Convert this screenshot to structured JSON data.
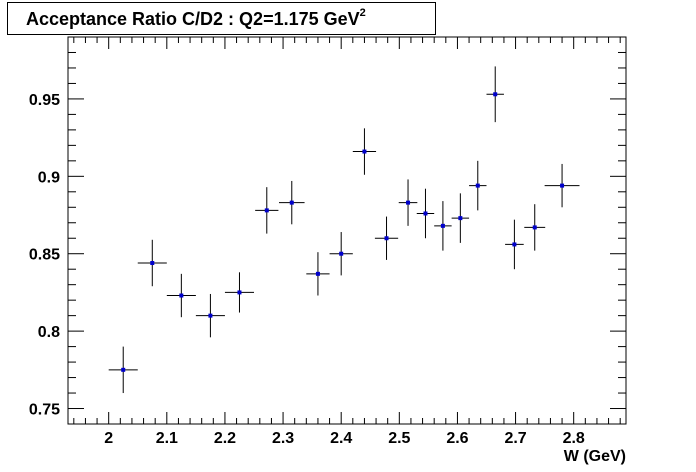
{
  "chart_data": {
    "type": "scatter",
    "title": "Acceptance Ratio C/D2 : Q2=1.175 GeV",
    "title_superscript": "2",
    "xlabel": "W (GeV)",
    "ylabel": "",
    "xlim": [
      1.93,
      2.89
    ],
    "ylim": [
      0.74,
      0.99
    ],
    "x_ticks": [
      2,
      2.1,
      2.2,
      2.3,
      2.4,
      2.5,
      2.6,
      2.7,
      2.8
    ],
    "x_tick_labels": [
      "2",
      "2.1",
      "2.2",
      "2.3",
      "2.4",
      "2.5",
      "2.6",
      "2.7",
      "2.8"
    ],
    "y_ticks": [
      0.75,
      0.8,
      0.85,
      0.9,
      0.95
    ],
    "y_tick_labels": [
      "0.75",
      "0.8",
      "0.85",
      "0.9",
      "0.95"
    ],
    "grid": false,
    "marker_color": "#0000cc",
    "error_bar_color": "#000000",
    "points": [
      {
        "x": 2.025,
        "y": 0.775,
        "xerr": 0.025,
        "yerr": 0.015
      },
      {
        "x": 2.075,
        "y": 0.844,
        "xerr": 0.025,
        "yerr": 0.015
      },
      {
        "x": 2.125,
        "y": 0.823,
        "xerr": 0.025,
        "yerr": 0.014
      },
      {
        "x": 2.175,
        "y": 0.81,
        "xerr": 0.025,
        "yerr": 0.014
      },
      {
        "x": 2.225,
        "y": 0.825,
        "xerr": 0.025,
        "yerr": 0.013
      },
      {
        "x": 2.272,
        "y": 0.878,
        "xerr": 0.02,
        "yerr": 0.015
      },
      {
        "x": 2.315,
        "y": 0.883,
        "xerr": 0.022,
        "yerr": 0.014
      },
      {
        "x": 2.36,
        "y": 0.837,
        "xerr": 0.02,
        "yerr": 0.014
      },
      {
        "x": 2.4,
        "y": 0.85,
        "xerr": 0.02,
        "yerr": 0.014
      },
      {
        "x": 2.44,
        "y": 0.916,
        "xerr": 0.02,
        "yerr": 0.015
      },
      {
        "x": 2.478,
        "y": 0.86,
        "xerr": 0.02,
        "yerr": 0.014
      },
      {
        "x": 2.515,
        "y": 0.883,
        "xerr": 0.016,
        "yerr": 0.015
      },
      {
        "x": 2.545,
        "y": 0.876,
        "xerr": 0.015,
        "yerr": 0.016
      },
      {
        "x": 2.575,
        "y": 0.868,
        "xerr": 0.015,
        "yerr": 0.016
      },
      {
        "x": 2.605,
        "y": 0.873,
        "xerr": 0.015,
        "yerr": 0.016
      },
      {
        "x": 2.635,
        "y": 0.894,
        "xerr": 0.015,
        "yerr": 0.016
      },
      {
        "x": 2.665,
        "y": 0.953,
        "xerr": 0.015,
        "yerr": 0.018
      },
      {
        "x": 2.698,
        "y": 0.856,
        "xerr": 0.016,
        "yerr": 0.016
      },
      {
        "x": 2.733,
        "y": 0.867,
        "xerr": 0.018,
        "yerr": 0.015
      },
      {
        "x": 2.78,
        "y": 0.894,
        "xerr": 0.03,
        "yerr": 0.014
      }
    ]
  }
}
